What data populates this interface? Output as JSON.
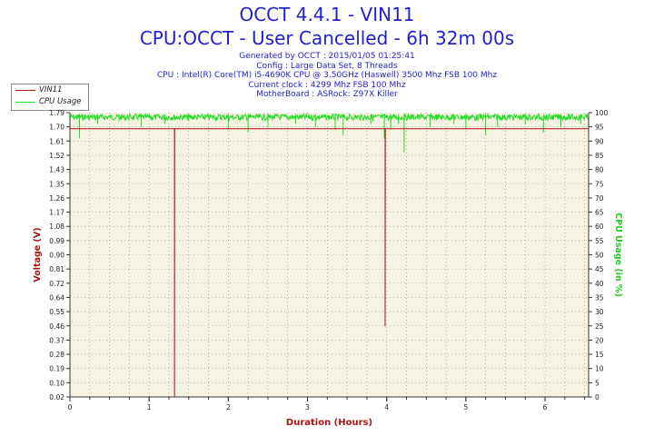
{
  "header": {
    "title": "OCCT 4.4.1 - VIN11",
    "subtitle": "CPU:OCCT - User Cancelled - 6h 32m 00s",
    "info_lines": [
      "Generated by OCCT : 2015/01/05 01:25:41",
      "Config : Large Data Set, 8 Threads",
      "CPU : Intel(R) Core(TM) i5-4690K CPU @ 3.50GHz (Haswell) 3500 Mhz FSB 100 Mhz",
      "Current clock : 4299 Mhz FSB 100 Mhz",
      "MotherBoard : ASRock: Z97X Killer"
    ]
  },
  "colors": {
    "title": "#1f1fcf",
    "voltage_series": "#b01010",
    "cpu_series": "#22dd22",
    "plot_bg": "#f7f3e3",
    "axis_label_left": "#b01010",
    "axis_label_right": "#22cc22"
  },
  "chart_data": {
    "type": "line",
    "xlabel": "Duration (Hours)",
    "ylabel_left": "Voltage (V)",
    "ylabel_right": "CPU Usage (in %)",
    "xlim": [
      0,
      6.55
    ],
    "ylim_left": [
      0.02,
      1.79
    ],
    "ylim_right": [
      0,
      100
    ],
    "x_ticks": [
      0,
      1,
      2,
      3,
      4,
      5,
      6
    ],
    "y_left_ticks": [
      "0.02",
      "0.10",
      "0.19",
      "0.28",
      "0.37",
      "0.46",
      "0.55",
      "0.64",
      "0.72",
      "0.81",
      "0.90",
      "0.99",
      "1.08",
      "1.17",
      "1.26",
      "1.35",
      "1.43",
      "1.52",
      "1.61",
      "1.70",
      "1.79"
    ],
    "y_right_ticks": [
      0,
      5,
      10,
      15,
      20,
      25,
      30,
      35,
      40,
      45,
      50,
      55,
      60,
      65,
      70,
      75,
      80,
      85,
      90,
      95,
      100
    ],
    "grid": true,
    "legend_position": "top-left outside",
    "series": [
      {
        "name": "VIN11",
        "axis": "left",
        "baseline": 1.69,
        "dips": [
          {
            "x": 1.32,
            "y": 0.02
          },
          {
            "x": 3.98,
            "y": 0.46
          }
        ]
      },
      {
        "name": "CPU Usage",
        "axis": "right",
        "baseline": 99.5,
        "dips": [
          {
            "x": 0.12,
            "y": 91
          },
          {
            "x": 0.35,
            "y": 96
          },
          {
            "x": 0.62,
            "y": 97
          },
          {
            "x": 0.9,
            "y": 95
          },
          {
            "x": 1.2,
            "y": 96
          },
          {
            "x": 1.5,
            "y": 97
          },
          {
            "x": 2.0,
            "y": 94
          },
          {
            "x": 2.25,
            "y": 93
          },
          {
            "x": 2.5,
            "y": 95
          },
          {
            "x": 2.85,
            "y": 96
          },
          {
            "x": 3.1,
            "y": 95
          },
          {
            "x": 3.35,
            "y": 94
          },
          {
            "x": 3.45,
            "y": 92
          },
          {
            "x": 3.8,
            "y": 96
          },
          {
            "x": 3.97,
            "y": 91
          },
          {
            "x": 4.05,
            "y": 94
          },
          {
            "x": 4.15,
            "y": 96
          },
          {
            "x": 4.22,
            "y": 86
          },
          {
            "x": 4.55,
            "y": 95
          },
          {
            "x": 4.85,
            "y": 96
          },
          {
            "x": 5.0,
            "y": 94
          },
          {
            "x": 5.25,
            "y": 92
          },
          {
            "x": 5.4,
            "y": 95
          },
          {
            "x": 5.75,
            "y": 96
          },
          {
            "x": 5.98,
            "y": 93
          },
          {
            "x": 6.2,
            "y": 95
          },
          {
            "x": 6.45,
            "y": 96
          }
        ]
      }
    ]
  }
}
